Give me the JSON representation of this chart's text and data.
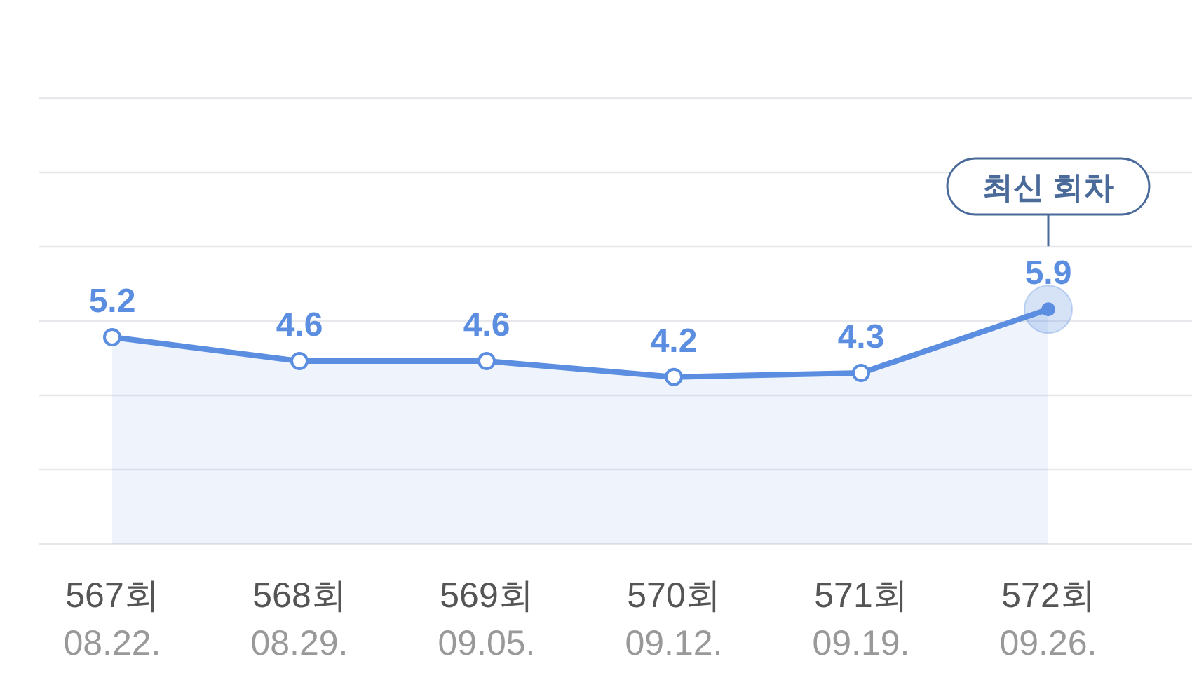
{
  "chart_data": {
    "type": "area",
    "categories": [
      "567회\n08.22.",
      "568회\n08.29.",
      "569회\n09.05.",
      "570회\n09.12.",
      "571회\n09.19.",
      "572회\n09.26."
    ],
    "series": [
      {
        "color": "#5b8ee0",
        "values": [
          5.2,
          4.6,
          4.6,
          4.2,
          4.3,
          5.9
        ]
      }
    ],
    "data_labels": true,
    "marker": "circle",
    "grid": "y",
    "annotations": [
      "최신 회차"
    ]
  }
}
